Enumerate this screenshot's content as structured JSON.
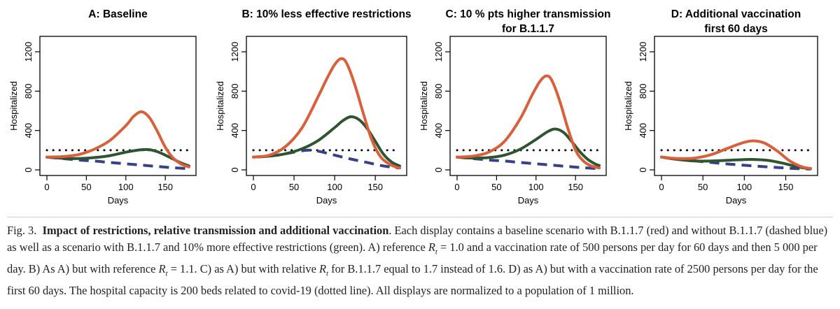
{
  "chart_data": [
    {
      "type": "line",
      "title": "A: Baseline",
      "title_lines": [
        "A: Baseline"
      ],
      "xlabel": "Days",
      "ylabel": "Hospitalized",
      "xlim": [
        0,
        180
      ],
      "ylim": [
        0,
        1300
      ],
      "xticks": [
        0,
        50,
        100,
        150
      ],
      "yticks": [
        0,
        400,
        800,
        1200
      ],
      "capacity": 200,
      "series": [
        {
          "style": "solid",
          "color": "#d9603b",
          "x": [
            0,
            20,
            40,
            60,
            80,
            100,
            110,
            120,
            130,
            140,
            150,
            160,
            170,
            180
          ],
          "y": [
            130,
            135,
            155,
            210,
            300,
            450,
            545,
            590,
            530,
            390,
            230,
            120,
            60,
            30
          ]
        },
        {
          "style": "solid",
          "color": "#2f5530",
          "x": [
            0,
            20,
            40,
            60,
            80,
            100,
            110,
            120,
            130,
            140,
            150,
            160,
            170,
            180
          ],
          "y": [
            130,
            118,
            115,
            125,
            145,
            180,
            195,
            205,
            205,
            185,
            150,
            110,
            70,
            40
          ]
        },
        {
          "style": "dashed",
          "color": "#37418a",
          "x": [
            0,
            20,
            40,
            60,
            80,
            100,
            120,
            140,
            160,
            180
          ],
          "y": [
            130,
            115,
            100,
            90,
            75,
            62,
            48,
            35,
            22,
            12
          ]
        }
      ]
    },
    {
      "type": "line",
      "title": "B: 10% less effective restrictions",
      "title_lines": [
        "B: 10% less effective restrictions"
      ],
      "xlabel": "Days",
      "ylabel": "Hospitalized",
      "xlim": [
        0,
        180
      ],
      "ylim": [
        0,
        1300
      ],
      "xticks": [
        0,
        50,
        100,
        150
      ],
      "yticks": [
        0,
        400,
        800,
        1200
      ],
      "capacity": 200,
      "series": [
        {
          "style": "solid",
          "color": "#d9603b",
          "x": [
            0,
            20,
            40,
            60,
            80,
            90,
            100,
            108,
            115,
            125,
            135,
            145,
            155,
            165,
            175,
            180
          ],
          "y": [
            130,
            150,
            240,
            430,
            750,
            920,
            1070,
            1130,
            1080,
            860,
            580,
            320,
            150,
            70,
            30,
            20
          ]
        },
        {
          "style": "solid",
          "color": "#2f5530",
          "x": [
            0,
            20,
            40,
            60,
            80,
            100,
            110,
            120,
            130,
            140,
            150,
            160,
            170,
            180
          ],
          "y": [
            130,
            140,
            165,
            215,
            300,
            430,
            500,
            540,
            510,
            420,
            290,
            160,
            80,
            40
          ]
        },
        {
          "style": "dashed",
          "color": "#37418a",
          "x": [
            0,
            20,
            40,
            60,
            70,
            80,
            100,
            120,
            140,
            160,
            180
          ],
          "y": [
            130,
            140,
            165,
            195,
            200,
            190,
            150,
            110,
            75,
            40,
            18
          ]
        }
      ]
    },
    {
      "type": "line",
      "title": "C: 10 % pts higher transmission for B.1.1.7",
      "title_lines": [
        "C: 10 % pts higher transmission",
        "for B.1.1.7"
      ],
      "xlabel": "Days",
      "ylabel": "Hospitalized",
      "xlim": [
        0,
        180
      ],
      "ylim": [
        0,
        1300
      ],
      "xticks": [
        0,
        50,
        100,
        150
      ],
      "yticks": [
        0,
        400,
        800,
        1200
      ],
      "capacity": 200,
      "series": [
        {
          "style": "solid",
          "color": "#d9603b",
          "x": [
            0,
            20,
            40,
            60,
            80,
            95,
            105,
            113,
            120,
            130,
            140,
            150,
            160,
            170,
            180
          ],
          "y": [
            130,
            140,
            180,
            290,
            520,
            760,
            900,
            955,
            910,
            700,
            430,
            200,
            90,
            40,
            20
          ]
        },
        {
          "style": "solid",
          "color": "#2f5530",
          "x": [
            0,
            20,
            40,
            60,
            80,
            100,
            115,
            125,
            135,
            145,
            155,
            165,
            175,
            180
          ],
          "y": [
            130,
            120,
            125,
            150,
            210,
            310,
            390,
            415,
            380,
            290,
            190,
            110,
            60,
            45
          ]
        },
        {
          "style": "dashed",
          "color": "#37418a",
          "x": [
            0,
            20,
            40,
            60,
            80,
            100,
            120,
            140,
            160,
            180
          ],
          "y": [
            130,
            115,
            100,
            90,
            75,
            62,
            48,
            35,
            22,
            12
          ]
        }
      ]
    },
    {
      "type": "line",
      "title": "D: Additional vaccination first 60 days",
      "title_lines": [
        "D: Additional vaccination",
        "first 60 days"
      ],
      "xlabel": "Days",
      "ylabel": "Hospitalized",
      "xlim": [
        0,
        180
      ],
      "ylim": [
        0,
        1300
      ],
      "xticks": [
        0,
        50,
        100,
        150
      ],
      "yticks": [
        0,
        400,
        800,
        1200
      ],
      "capacity": 200,
      "series": [
        {
          "style": "solid",
          "color": "#d9603b",
          "x": [
            0,
            20,
            40,
            60,
            80,
            100,
            112,
            125,
            140,
            155,
            170,
            180
          ],
          "y": [
            130,
            115,
            120,
            155,
            220,
            280,
            295,
            270,
            190,
            90,
            30,
            15
          ]
        },
        {
          "style": "solid",
          "color": "#2f5530",
          "x": [
            0,
            20,
            40,
            60,
            80,
            100,
            115,
            130,
            145,
            160,
            170,
            180
          ],
          "y": [
            130,
            105,
            90,
            90,
            97,
            105,
            105,
            95,
            70,
            40,
            22,
            12
          ]
        },
        {
          "style": "dashed",
          "color": "#37418a",
          "x": [
            0,
            20,
            40,
            60,
            80,
            100,
            120,
            140,
            160,
            180
          ],
          "y": [
            130,
            110,
            92,
            75,
            60,
            47,
            35,
            24,
            14,
            8
          ]
        }
      ]
    }
  ],
  "caption": {
    "fig_label": "Fig. 3.",
    "lead": "Impact of restrictions, relative transmission and additional vaccination",
    "t1": ". Each display contains a baseline scenario with B.1.1.7 (red) and without B.1.1.7 (dashed blue) as well as a scenario with B.1.1.7 and 10% more effective restrictions (green). A) reference ",
    "t2": " = 1.0 and a vaccination rate of 500 persons per day for 60 days and then 5 000 per day. B) As A) but with reference ",
    "t3": " = 1.1. C) as A) but with relative ",
    "t4": " for B.1.1.7 equal to 1.7 instead of 1.6. D) as A) but with a vaccination rate of 2500 persons per day for the first 60 days. The hospital capacity is 200 beds related to covid-19 (dotted line). All displays are normalized to a population of 1 million.",
    "rt_main": "R",
    "rt_sub": "t"
  }
}
